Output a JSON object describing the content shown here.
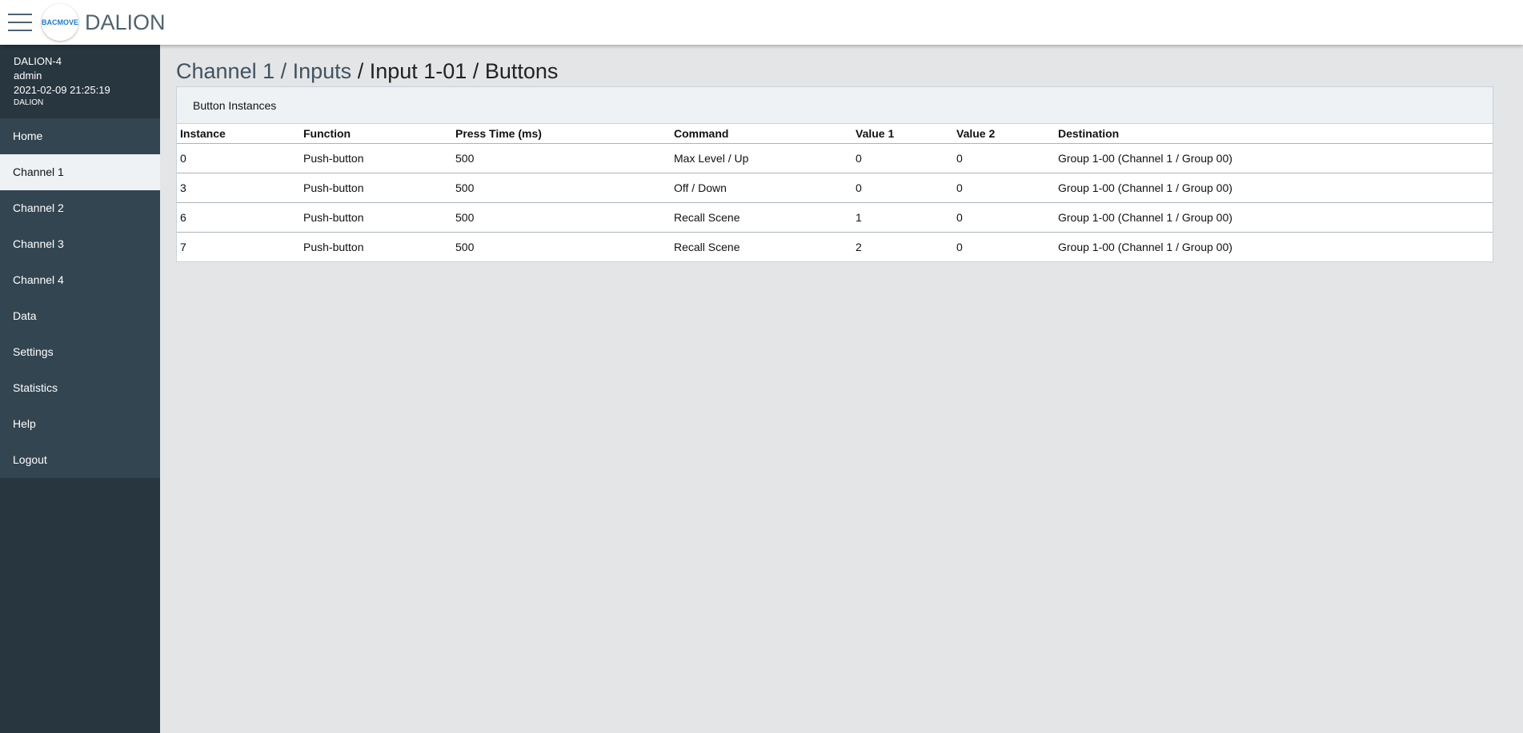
{
  "header": {
    "brand": "DALION",
    "logo_text": "BACMOVE"
  },
  "sidebar": {
    "device": "DALION-4",
    "user": "admin",
    "datetime": "2021-02-09 21:25:19",
    "product": "DALION",
    "items": [
      {
        "label": "Home"
      },
      {
        "label": "Channel 1",
        "active": true
      },
      {
        "label": "Channel 2"
      },
      {
        "label": "Channel 3"
      },
      {
        "label": "Channel 4"
      },
      {
        "label": "Data"
      },
      {
        "label": "Settings"
      },
      {
        "label": "Statistics"
      },
      {
        "label": "Help"
      },
      {
        "label": "Logout"
      }
    ]
  },
  "breadcrumb": {
    "c1": "Channel 1",
    "c2": "Inputs",
    "c3": "Input 1-01",
    "c4": "Buttons",
    "sep": " / "
  },
  "panel": {
    "title": "Button Instances",
    "columns": [
      "Instance",
      "Function",
      "Press Time (ms)",
      "Command",
      "Value 1",
      "Value 2",
      "Destination"
    ],
    "rows": [
      [
        "0",
        "Push-button",
        "500",
        "Max Level / Up",
        "0",
        "0",
        "Group 1-00 (Channel 1 / Group 00)"
      ],
      [
        "3",
        "Push-button",
        "500",
        "Off / Down",
        "0",
        "0",
        "Group 1-00 (Channel 1 / Group 00)"
      ],
      [
        "6",
        "Push-button",
        "500",
        "Recall Scene",
        "1",
        "0",
        "Group 1-00 (Channel 1 / Group 00)"
      ],
      [
        "7",
        "Push-button",
        "500",
        "Recall Scene",
        "2",
        "0",
        "Group 1-00 (Channel 1 / Group 00)"
      ]
    ]
  }
}
